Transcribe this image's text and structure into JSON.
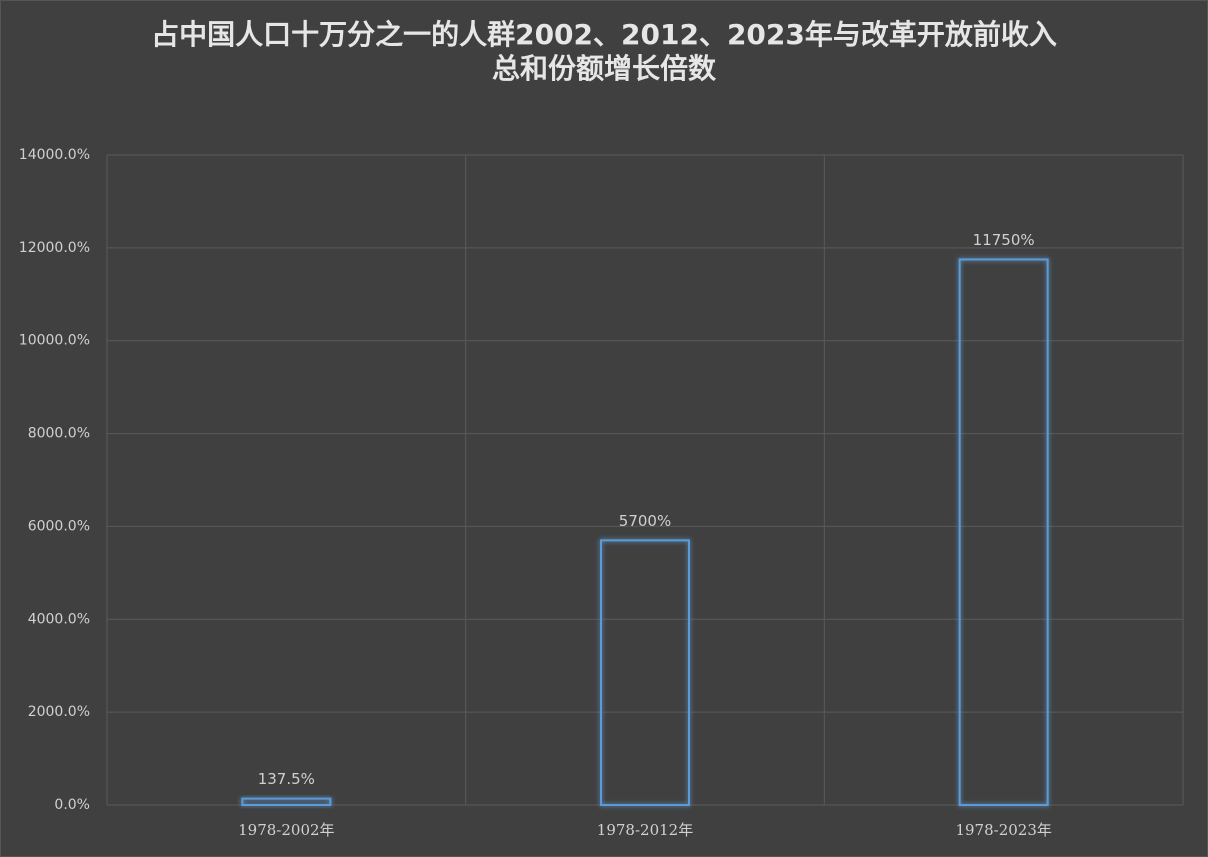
{
  "chart_data": {
    "type": "bar",
    "title": "占中国人口十万分之一的人群2002、2012、2023年与改革开放前收入总和份额增长倍数",
    "categories": [
      "1978-2002年",
      "1978-2012年",
      "1978-2023年"
    ],
    "values": [
      137.5,
      5700,
      11750
    ],
    "value_labels": [
      "137.5%",
      "5700%",
      "11750%"
    ],
    "color": "#5b9bd5",
    "ylim": [
      0,
      14000
    ],
    "yticks": [
      {
        "value": 0,
        "label": "0.0%"
      },
      {
        "value": 2000,
        "label": "2000.0%"
      },
      {
        "value": 4000,
        "label": "4000.0%"
      },
      {
        "value": 6000,
        "label": "6000.0%"
      },
      {
        "value": 8000,
        "label": "8000.0%"
      },
      {
        "value": 10000,
        "label": "10000.0%"
      },
      {
        "value": 12000,
        "label": "12000.0%"
      },
      {
        "value": 14000,
        "label": "14000.0%"
      }
    ],
    "grid": true
  }
}
